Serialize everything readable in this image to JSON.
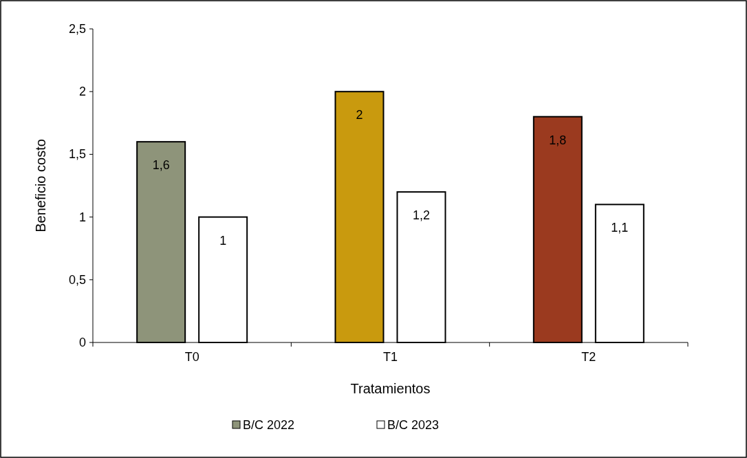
{
  "chart_data": {
    "type": "bar",
    "xlabel": "Tratamientos",
    "ylabel": "Beneficio costo",
    "categories": [
      "T0",
      "T1",
      "T2"
    ],
    "series": [
      {
        "name": "B/C 2022",
        "color": "#8e947a",
        "colors": [
          "#8e947a",
          "#c99a0e",
          "#9b3a1f"
        ],
        "values": [
          1.6,
          2,
          1.8
        ],
        "value_labels": [
          "1,6",
          "2",
          "1,8"
        ]
      },
      {
        "name": "B/C 2023",
        "color": "#ffffff",
        "values": [
          1,
          1.2,
          1.1
        ],
        "value_labels": [
          "1",
          "1,2",
          "1,1"
        ]
      }
    ],
    "ylim": [
      0,
      2.5
    ],
    "yticks": [
      0,
      {
        "value": 0.5,
        "label": "0,5"
      },
      1,
      {
        "value": 1.5,
        "label": "1,5"
      },
      2,
      {
        "value": 2.5,
        "label": "2,5"
      }
    ],
    "grid": false,
    "legend": "bottom"
  }
}
